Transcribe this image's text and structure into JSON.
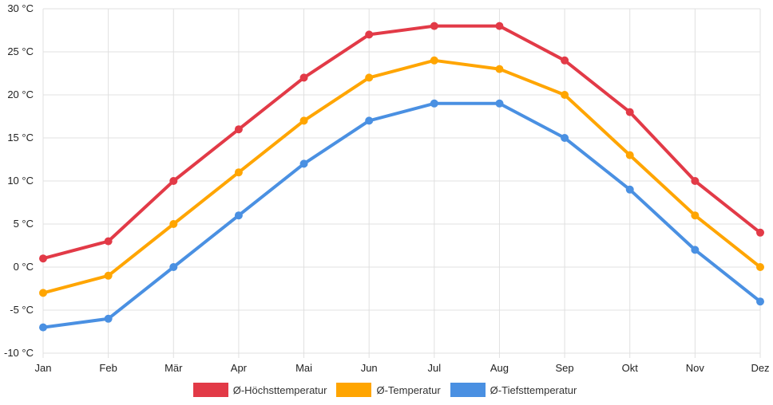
{
  "chart_data": {
    "type": "line",
    "title": "",
    "xlabel": "",
    "ylabel": "",
    "categories": [
      "Jan",
      "Feb",
      "Mär",
      "Apr",
      "Mai",
      "Jun",
      "Jul",
      "Aug",
      "Sep",
      "Okt",
      "Nov",
      "Dez"
    ],
    "ylim": [
      -10,
      30
    ],
    "y_ticks": [
      30,
      25,
      20,
      15,
      10,
      5,
      0,
      -5,
      -10
    ],
    "y_tick_labels": [
      "30 °C",
      "25 °C",
      "20 °C",
      "15 °C",
      "10 °C",
      "5 °C",
      "0 °C",
      "-5 °C",
      "-10 °C"
    ],
    "grid": true,
    "legend_position": "bottom",
    "series": [
      {
        "name": "Ø-Höchsttemperatur",
        "color": "#e23a47",
        "values": [
          1,
          3,
          10,
          16,
          22,
          27,
          28,
          28,
          24,
          18,
          10,
          4
        ]
      },
      {
        "name": "Ø-Temperatur",
        "color": "#ffa500",
        "values": [
          -3,
          -1,
          5,
          11,
          17,
          22,
          24,
          23,
          20,
          13,
          6,
          0
        ]
      },
      {
        "name": "Ø-Tiefsttemperatur",
        "color": "#4a90e2",
        "values": [
          -7,
          -6,
          0,
          6,
          12,
          17,
          19,
          19,
          15,
          9,
          2,
          -4
        ]
      }
    ]
  }
}
